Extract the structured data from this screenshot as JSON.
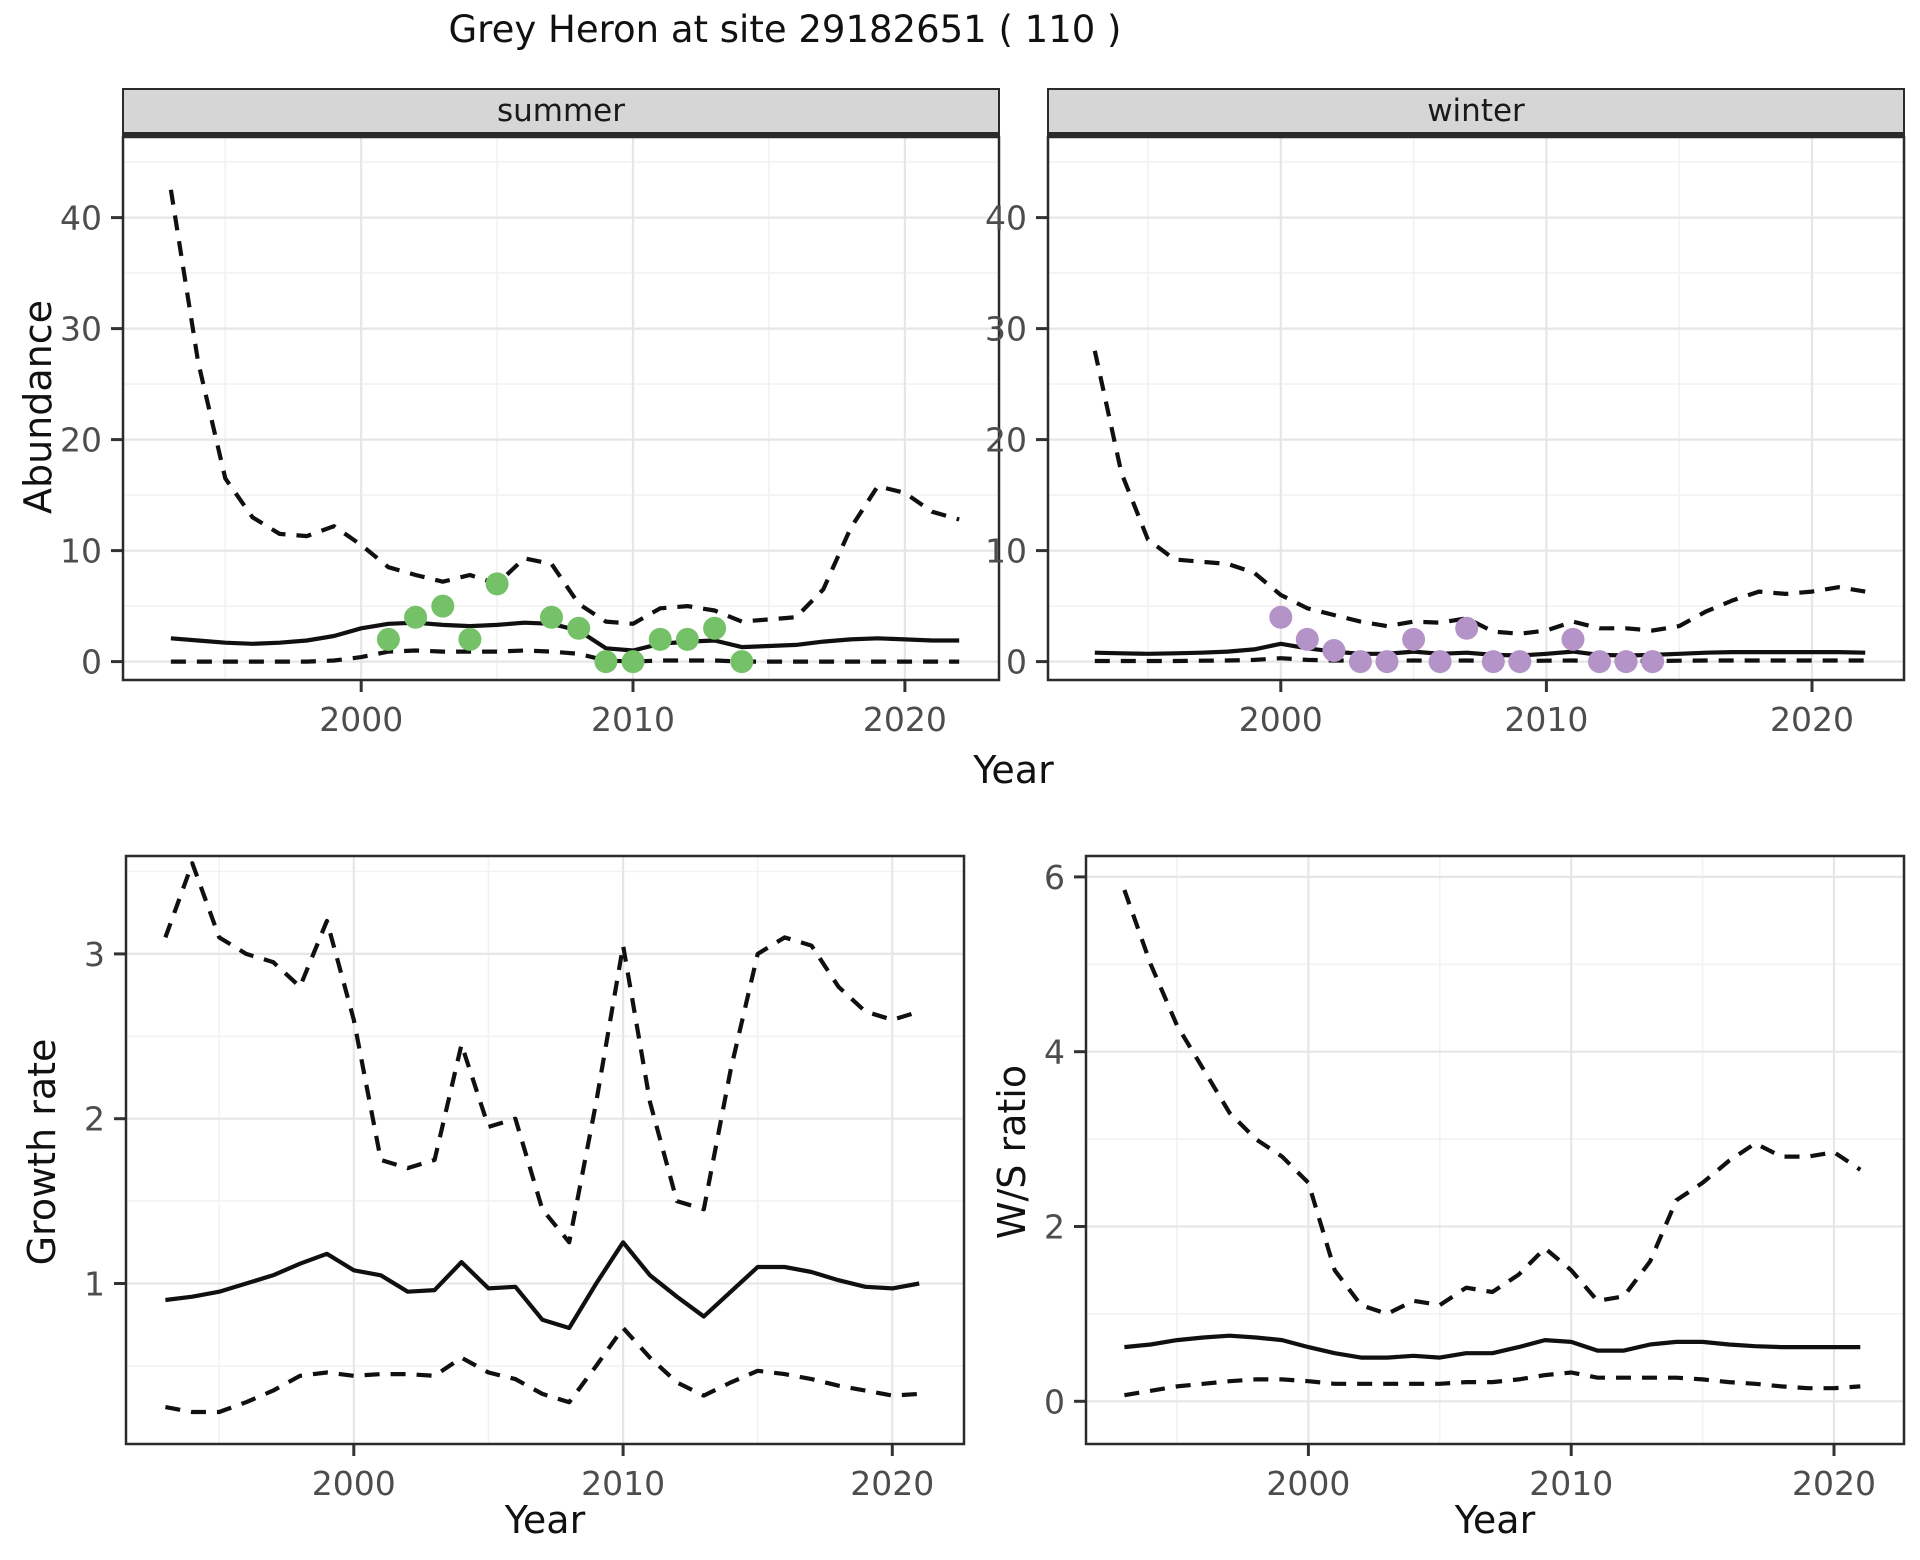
{
  "title": "Grey Heron at site 29182651 ( 110 )",
  "colors": {
    "summer_points": "#74c168",
    "winter_points": "#b493c8",
    "line": "#101010",
    "grid_major": "#e6e6e6",
    "grid_minor": "#f2f2f2",
    "tick_text": "#4d4d4d",
    "strip_bg": "#d6d6d6"
  },
  "labels": {
    "top_xlabel": "Year",
    "bottom_left_xlabel": "Year",
    "bottom_right_xlabel": "Year",
    "abundance_ylabel": "Abundance",
    "growth_ylabel": "Growth rate",
    "ws_ylabel": "W/S ratio",
    "facet_summer": "summer",
    "facet_winter": "winter"
  },
  "chart_data": [
    {
      "type": "line",
      "facet": "summer",
      "ylabel": "Abundance",
      "xlabel": "Year",
      "xlim": [
        1991.2,
        2023.5
      ],
      "ylim": [
        -1.75,
        47.35
      ],
      "x_ticks": [
        2000,
        2010,
        2020
      ],
      "y_ticks": [
        0,
        10,
        20,
        30,
        40
      ],
      "legend": "none",
      "grid": true,
      "series": [
        {
          "name": "upper-95-ci",
          "style": "dashed",
          "x": [
            1993,
            1994,
            1995,
            1996,
            1997,
            1998,
            1999,
            2000,
            2001,
            2002,
            2003,
            2004,
            2005,
            2006,
            2007,
            2008,
            2009,
            2010,
            2011,
            2012,
            2013,
            2014,
            2015,
            2016,
            2017,
            2018,
            2019,
            2020,
            2021,
            2022
          ],
          "y": [
            42.5,
            27,
            16.5,
            13,
            11.5,
            11.3,
            12.2,
            10.5,
            8.5,
            7.8,
            7.2,
            7.8,
            7.0,
            9.3,
            8.8,
            5.2,
            3.6,
            3.4,
            4.8,
            5.0,
            4.6,
            3.6,
            3.8,
            4.0,
            6.5,
            12.0,
            15.8,
            15.2,
            13.5,
            12.8
          ]
        },
        {
          "name": "median",
          "style": "solid",
          "x": [
            1993,
            1994,
            1995,
            1996,
            1997,
            1998,
            1999,
            2000,
            2001,
            2002,
            2003,
            2004,
            2005,
            2006,
            2007,
            2008,
            2009,
            2010,
            2011,
            2012,
            2013,
            2014,
            2015,
            2016,
            2017,
            2018,
            2019,
            2020,
            2021,
            2022
          ],
          "y": [
            2.1,
            1.9,
            1.7,
            1.6,
            1.7,
            1.9,
            2.3,
            3.0,
            3.4,
            3.5,
            3.3,
            3.2,
            3.3,
            3.5,
            3.4,
            2.8,
            1.2,
            1.0,
            1.6,
            1.8,
            1.9,
            1.3,
            1.4,
            1.5,
            1.8,
            2.0,
            2.1,
            2.0,
            1.9,
            1.9
          ]
        },
        {
          "name": "lower-95-ci",
          "style": "dashed",
          "x": [
            1993,
            1994,
            1995,
            1996,
            1997,
            1998,
            1999,
            2000,
            2001,
            2002,
            2003,
            2004,
            2005,
            2006,
            2007,
            2008,
            2009,
            2010,
            2011,
            2012,
            2013,
            2014,
            2015,
            2016,
            2017,
            2018,
            2019,
            2020,
            2021,
            2022
          ],
          "y": [
            0,
            0,
            0,
            0,
            0,
            0,
            0.1,
            0.4,
            0.9,
            1.0,
            0.9,
            0.9,
            0.9,
            1.0,
            0.9,
            0.7,
            0.1,
            0,
            0.1,
            0.1,
            0.1,
            0,
            0,
            0,
            0,
            0,
            0,
            0,
            0,
            0
          ]
        },
        {
          "name": "observed-counts",
          "style": "points",
          "color": "#74c168",
          "x": [
            2001,
            2002,
            2003,
            2004,
            2005,
            2007,
            2008,
            2009,
            2010,
            2011,
            2012,
            2013,
            2014
          ],
          "y": [
            2,
            4,
            5,
            2,
            7,
            4,
            3,
            0,
            0,
            2,
            2,
            3,
            0
          ]
        }
      ]
    },
    {
      "type": "line",
      "facet": "winter",
      "ylabel": "Abundance",
      "xlabel": "Year",
      "xlim": [
        1991.2,
        2023.5
      ],
      "ylim": [
        -1.75,
        47.35
      ],
      "x_ticks": [
        2000,
        2010,
        2020
      ],
      "y_ticks": [
        0,
        10,
        20,
        30,
        40
      ],
      "legend": "none",
      "grid": true,
      "series": [
        {
          "name": "upper-95-ci",
          "style": "dashed",
          "x": [
            1993,
            1994,
            1995,
            1996,
            1997,
            1998,
            1999,
            2000,
            2001,
            2002,
            2003,
            2004,
            2005,
            2006,
            2007,
            2008,
            2009,
            2010,
            2011,
            2012,
            2013,
            2014,
            2015,
            2016,
            2017,
            2018,
            2019,
            2020,
            2021,
            2022
          ],
          "y": [
            28,
            17,
            11,
            9.2,
            9.0,
            8.8,
            8.0,
            6.0,
            4.8,
            4.2,
            3.6,
            3.2,
            3.6,
            3.5,
            3.9,
            2.7,
            2.5,
            2.8,
            3.6,
            3.0,
            3.0,
            2.8,
            3.2,
            4.5,
            5.5,
            6.3,
            6.1,
            6.3,
            6.7,
            6.3
          ]
        },
        {
          "name": "median",
          "style": "solid",
          "x": [
            1993,
            1994,
            1995,
            1996,
            1997,
            1998,
            1999,
            2000,
            2001,
            2002,
            2003,
            2004,
            2005,
            2006,
            2007,
            2008,
            2009,
            2010,
            2011,
            2012,
            2013,
            2014,
            2015,
            2016,
            2017,
            2018,
            2019,
            2020,
            2021,
            2022
          ],
          "y": [
            0.8,
            0.75,
            0.7,
            0.75,
            0.8,
            0.9,
            1.1,
            1.6,
            1.2,
            0.9,
            0.7,
            0.7,
            0.9,
            0.7,
            0.8,
            0.6,
            0.55,
            0.7,
            0.9,
            0.6,
            0.55,
            0.6,
            0.7,
            0.8,
            0.85,
            0.85,
            0.85,
            0.85,
            0.85,
            0.8
          ]
        },
        {
          "name": "lower-95-ci",
          "style": "dashed",
          "x": [
            1993,
            1994,
            1995,
            1996,
            1997,
            1998,
            1999,
            2000,
            2001,
            2002,
            2003,
            2004,
            2005,
            2006,
            2007,
            2008,
            2009,
            2010,
            2011,
            2012,
            2013,
            2014,
            2015,
            2016,
            2017,
            2018,
            2019,
            2020,
            2021,
            2022
          ],
          "y": [
            0.05,
            0.05,
            0.05,
            0.05,
            0.08,
            0.1,
            0.15,
            0.3,
            0.15,
            0.1,
            0.08,
            0.08,
            0.1,
            0.08,
            0.1,
            0.05,
            0.05,
            0.08,
            0.1,
            0.05,
            0.05,
            0.05,
            0.08,
            0.1,
            0.1,
            0.1,
            0.1,
            0.1,
            0.1,
            0.1
          ]
        },
        {
          "name": "observed-counts",
          "style": "points",
          "color": "#b493c8",
          "x": [
            2000,
            2001,
            2002,
            2003,
            2004,
            2005,
            2006,
            2007,
            2008,
            2009,
            2011,
            2012,
            2013,
            2014
          ],
          "y": [
            4,
            2,
            1,
            0,
            0,
            2,
            0,
            3,
            0,
            0,
            2,
            0,
            0,
            0
          ]
        }
      ]
    },
    {
      "type": "line",
      "facet": "",
      "ylabel": "Growth rate",
      "xlabel": "Year",
      "xlim": [
        1991.5,
        2022.7
      ],
      "ylim": [
        0.02,
        3.6
      ],
      "x_ticks": [
        2000,
        2010,
        2020
      ],
      "y_ticks": [
        1,
        2,
        3
      ],
      "legend": "none",
      "grid": true,
      "series": [
        {
          "name": "upper-95-ci",
          "style": "dashed",
          "x": [
            1993,
            1994,
            1995,
            1996,
            1997,
            1998,
            1999,
            2000,
            2001,
            2002,
            2003,
            2004,
            2005,
            2006,
            2007,
            2008,
            2009,
            2010,
            2011,
            2012,
            2013,
            2014,
            2015,
            2016,
            2017,
            2018,
            2019,
            2020,
            2021
          ],
          "y": [
            3.1,
            3.55,
            3.1,
            3.0,
            2.95,
            2.8,
            3.2,
            2.6,
            1.75,
            1.7,
            1.75,
            2.45,
            1.95,
            2.0,
            1.45,
            1.25,
            2.1,
            3.05,
            2.1,
            1.5,
            1.45,
            2.3,
            3.0,
            3.1,
            3.05,
            2.8,
            2.65,
            2.6,
            2.65
          ]
        },
        {
          "name": "median",
          "style": "solid",
          "x": [
            1993,
            1994,
            1995,
            1996,
            1997,
            1998,
            1999,
            2000,
            2001,
            2002,
            2003,
            2004,
            2005,
            2006,
            2007,
            2008,
            2009,
            2010,
            2011,
            2012,
            2013,
            2014,
            2015,
            2016,
            2017,
            2018,
            2019,
            2020,
            2021
          ],
          "y": [
            0.9,
            0.92,
            0.95,
            1.0,
            1.05,
            1.12,
            1.18,
            1.08,
            1.05,
            0.95,
            0.96,
            1.13,
            0.97,
            0.98,
            0.78,
            0.73,
            1.0,
            1.25,
            1.05,
            0.92,
            0.8,
            0.95,
            1.1,
            1.1,
            1.07,
            1.02,
            0.98,
            0.97,
            1.0
          ]
        },
        {
          "name": "lower-95-ci",
          "style": "dashed",
          "x": [
            1993,
            1994,
            1995,
            1996,
            1997,
            1998,
            1999,
            2000,
            2001,
            2002,
            2003,
            2004,
            2005,
            2006,
            2007,
            2008,
            2009,
            2010,
            2011,
            2012,
            2013,
            2014,
            2015,
            2016,
            2017,
            2018,
            2019,
            2020,
            2021
          ],
          "y": [
            0.25,
            0.22,
            0.22,
            0.28,
            0.35,
            0.44,
            0.46,
            0.44,
            0.45,
            0.45,
            0.44,
            0.55,
            0.46,
            0.42,
            0.33,
            0.28,
            0.5,
            0.73,
            0.55,
            0.4,
            0.32,
            0.4,
            0.47,
            0.45,
            0.42,
            0.38,
            0.35,
            0.32,
            0.33
          ]
        }
      ]
    },
    {
      "type": "line",
      "facet": "",
      "ylabel": "W/S ratio",
      "xlabel": "Year",
      "xlim": [
        1991.5,
        2022.7
      ],
      "ylim": [
        -0.5,
        6.25
      ],
      "x_ticks": [
        2000,
        2010,
        2020
      ],
      "y_ticks": [
        0,
        2,
        4,
        6
      ],
      "legend": "none",
      "grid": true,
      "series": [
        {
          "name": "upper-95-ci",
          "style": "dashed",
          "x": [
            1993,
            1994,
            1995,
            1996,
            1997,
            1998,
            1999,
            2000,
            2001,
            2002,
            2003,
            2004,
            2005,
            2006,
            2007,
            2008,
            2009,
            2010,
            2011,
            2012,
            2013,
            2014,
            2015,
            2016,
            2017,
            2018,
            2019,
            2020,
            2021
          ],
          "y": [
            5.85,
            5.0,
            4.3,
            3.8,
            3.3,
            3.0,
            2.8,
            2.5,
            1.5,
            1.1,
            1.0,
            1.15,
            1.1,
            1.3,
            1.25,
            1.45,
            1.75,
            1.5,
            1.15,
            1.2,
            1.6,
            2.3,
            2.5,
            2.75,
            2.95,
            2.8,
            2.8,
            2.85,
            2.65
          ]
        },
        {
          "name": "median",
          "style": "solid",
          "x": [
            1993,
            1994,
            1995,
            1996,
            1997,
            1998,
            1999,
            2000,
            2001,
            2002,
            2003,
            2004,
            2005,
            2006,
            2007,
            2008,
            2009,
            2010,
            2011,
            2012,
            2013,
            2014,
            2015,
            2016,
            2017,
            2018,
            2019,
            2020,
            2021
          ],
          "y": [
            0.62,
            0.65,
            0.7,
            0.73,
            0.75,
            0.73,
            0.7,
            0.62,
            0.55,
            0.5,
            0.5,
            0.52,
            0.5,
            0.55,
            0.55,
            0.62,
            0.7,
            0.68,
            0.58,
            0.58,
            0.65,
            0.68,
            0.68,
            0.65,
            0.63,
            0.62,
            0.62,
            0.62,
            0.62
          ]
        },
        {
          "name": "lower-95-ci",
          "style": "dashed",
          "x": [
            1993,
            1994,
            1995,
            1996,
            1997,
            1998,
            1999,
            2000,
            2001,
            2002,
            2003,
            2004,
            2005,
            2006,
            2007,
            2008,
            2009,
            2010,
            2011,
            2012,
            2013,
            2014,
            2015,
            2016,
            2017,
            2018,
            2019,
            2020,
            2021
          ],
          "y": [
            0.07,
            0.12,
            0.17,
            0.2,
            0.23,
            0.25,
            0.25,
            0.23,
            0.2,
            0.2,
            0.2,
            0.2,
            0.2,
            0.22,
            0.22,
            0.25,
            0.3,
            0.33,
            0.27,
            0.27,
            0.27,
            0.27,
            0.25,
            0.22,
            0.2,
            0.17,
            0.15,
            0.15,
            0.17
          ]
        }
      ]
    }
  ]
}
